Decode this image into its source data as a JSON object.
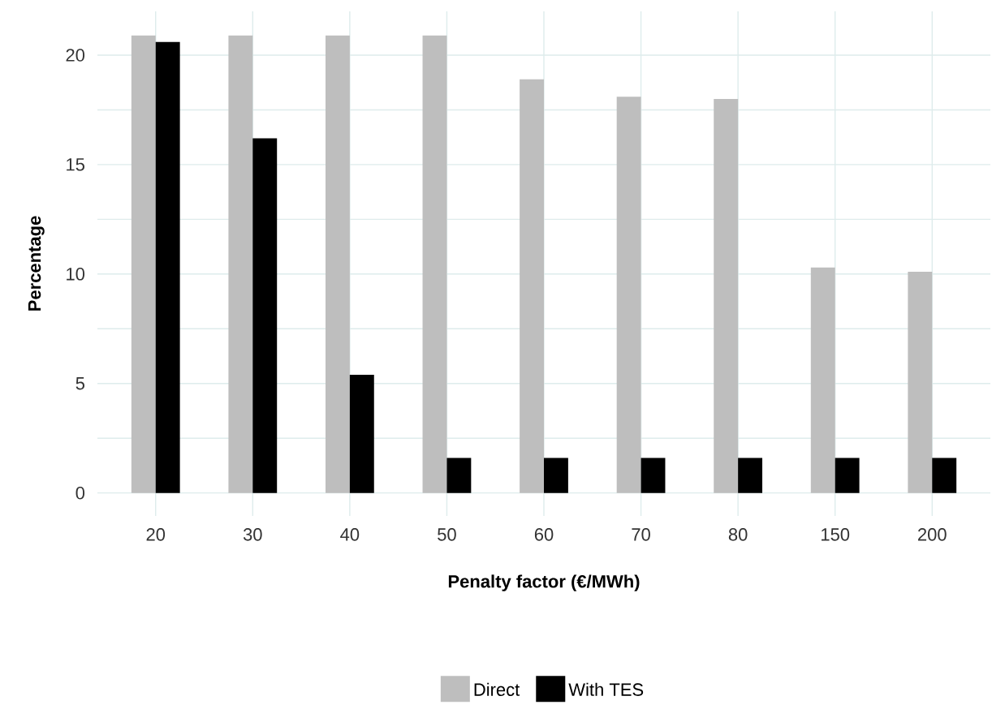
{
  "chart_data": {
    "type": "bar",
    "xlabel": "Penalty factor (€/MWh)",
    "ylabel": "Percentage",
    "categories": [
      "20",
      "30",
      "40",
      "50",
      "60",
      "70",
      "80",
      "150",
      "200"
    ],
    "series": [
      {
        "name": "Direct",
        "color": "#bebebe",
        "values": [
          20.9,
          20.9,
          20.9,
          20.9,
          18.9,
          18.1,
          18.0,
          10.3,
          10.1
        ]
      },
      {
        "name": "With TES",
        "color": "#000000",
        "values": [
          20.6,
          16.2,
          5.4,
          1.6,
          1.6,
          1.6,
          1.6,
          1.6,
          1.6
        ]
      }
    ],
    "ylim": [
      -1.05,
      22
    ],
    "yticks": [
      0,
      5,
      10,
      15,
      20
    ],
    "grid": true,
    "legend": "bottom"
  }
}
